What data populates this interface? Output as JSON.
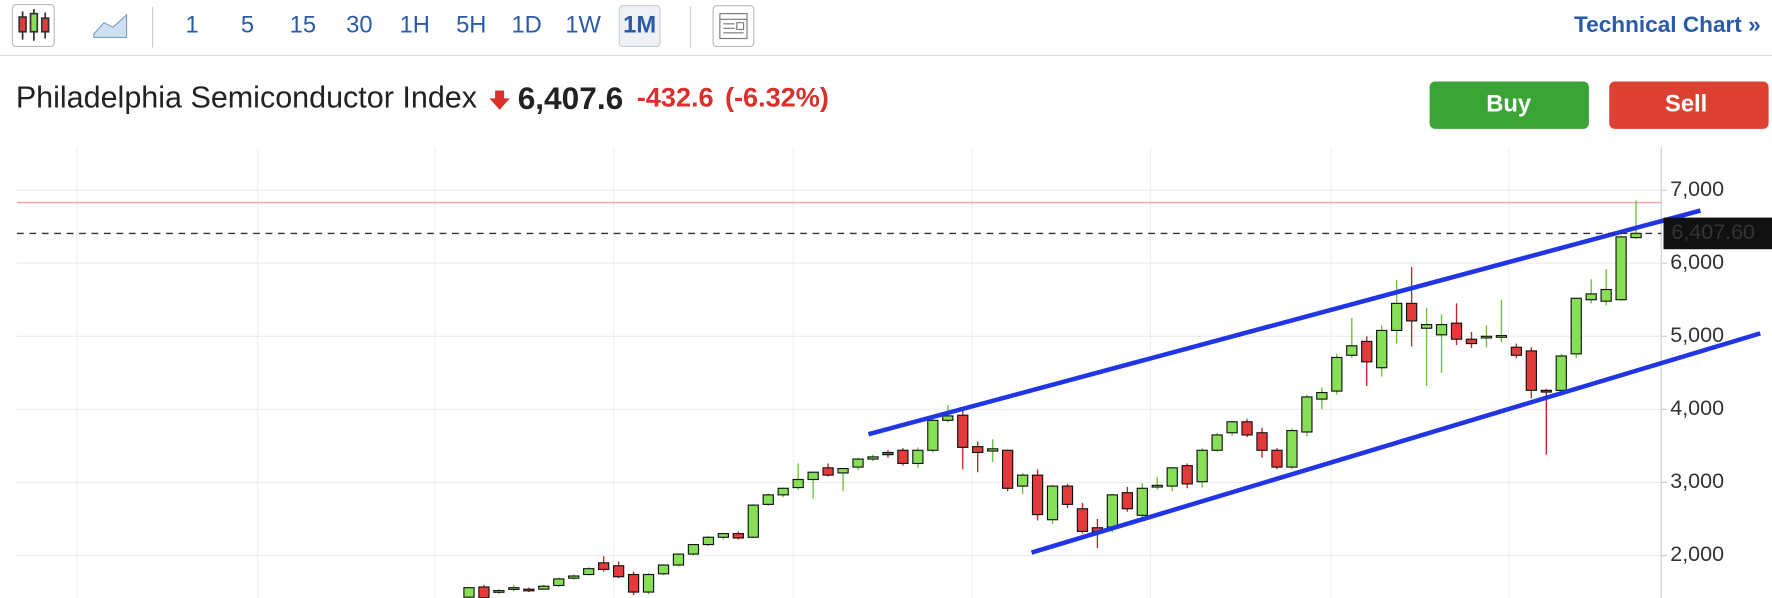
{
  "toolbar": {
    "intervals": [
      "1",
      "5",
      "15",
      "30",
      "1H",
      "5H",
      "1D",
      "1W",
      "1M"
    ],
    "active": "1M",
    "link": "Technical Chart »"
  },
  "quote": {
    "name": "Philadelphia Semiconductor Index",
    "price": "6,407.6",
    "change": "-432.6",
    "change_pct": "(-6.32%)"
  },
  "actions": {
    "buy": "Buy",
    "sell": "Sell"
  },
  "chart_data": {
    "type": "candlestick",
    "categories": [
      null,
      null,
      null,
      null,
      null,
      null,
      null,
      null,
      null,
      null,
      null,
      null,
      null,
      null,
      null,
      null,
      null,
      null,
      null,
      null,
      null,
      null,
      null,
      null,
      null,
      null,
      null,
      null,
      null,
      null,
      null,
      null,
      null,
      null,
      null,
      null,
      null,
      null,
      null,
      null,
      null,
      null,
      null,
      null,
      null,
      null,
      null,
      null,
      null,
      null,
      null,
      null,
      null,
      null,
      null,
      null,
      null,
      null,
      null,
      null,
      null,
      null,
      null,
      null,
      null,
      null,
      null,
      null,
      null,
      null,
      null,
      null,
      null,
      null,
      null,
      null,
      null,
      null,
      null
    ],
    "open": [
      1430,
      1570,
      1500,
      1540,
      1540,
      1540,
      1590,
      1690,
      1740,
      1900,
      1860,
      1740,
      1500,
      1750,
      1870,
      2020,
      2150,
      2250,
      2300,
      2250,
      2700,
      2830,
      2930,
      3040,
      3200,
      3130,
      3210,
      3320,
      3410,
      3440,
      3260,
      3440,
      3850,
      3920,
      3490,
      3430,
      3440,
      2950,
      3100,
      2490,
      2950,
      2640,
      2380,
      2390,
      2860,
      2550,
      2950,
      2950,
      3230,
      3010,
      3440,
      3680,
      3830,
      3680,
      3440,
      3210,
      3690,
      4140,
      4250,
      4740,
      4930,
      4570,
      5080,
      5450,
      5110,
      5020,
      5180,
      4960,
      4980,
      4990,
      4850,
      4800,
      4260,
      4260,
      4760,
      5500,
      5480,
      5500,
      6350
    ],
    "high": [
      1560,
      1600,
      1540,
      1600,
      1560,
      1600,
      1700,
      1740,
      1840,
      1990,
      1920,
      1780,
      1760,
      1880,
      2030,
      2160,
      2270,
      2310,
      2330,
      2700,
      2850,
      2930,
      3260,
      3150,
      3260,
      3200,
      3340,
      3380,
      3440,
      3470,
      3480,
      3880,
      4060,
      4030,
      3560,
      3590,
      3450,
      3130,
      3180,
      2970,
      2980,
      2720,
      2500,
      2840,
      2940,
      2990,
      3070,
      3210,
      3260,
      3470,
      3680,
      3840,
      3870,
      3750,
      3470,
      3740,
      4200,
      4300,
      4760,
      5250,
      5000,
      5150,
      5770,
      5950,
      5390,
      5300,
      5450,
      5060,
      5150,
      5500,
      4900,
      4850,
      4280,
      4760,
      5530,
      5780,
      5920,
      6380,
      6860
    ],
    "low": [
      1420,
      1410,
      1470,
      1510,
      1500,
      1530,
      1570,
      1670,
      1730,
      1780,
      1690,
      1460,
      1470,
      1730,
      1850,
      2000,
      2130,
      2220,
      2220,
      2240,
      2680,
      2800,
      2900,
      2780,
      3080,
      2880,
      3170,
      3290,
      3340,
      3230,
      3200,
      3410,
      3820,
      3180,
      3140,
      3280,
      2880,
      2840,
      2480,
      2430,
      2650,
      2300,
      2100,
      2320,
      2600,
      2520,
      2900,
      2880,
      2920,
      2930,
      3420,
      3640,
      3620,
      3340,
      3180,
      3180,
      3630,
      4000,
      4200,
      4700,
      4320,
      4450,
      4900,
      4860,
      4320,
      4500,
      4880,
      4840,
      4850,
      4920,
      4700,
      4150,
      3380,
      4200,
      4700,
      5450,
      5420,
      5490,
      6330
    ],
    "close": [
      1560,
      1420,
      1520,
      1560,
      1530,
      1580,
      1680,
      1720,
      1820,
      1810,
      1710,
      1500,
      1740,
      1870,
      2020,
      2150,
      2250,
      2300,
      2240,
      2690,
      2830,
      2920,
      3040,
      3140,
      3100,
      3190,
      3320,
      3350,
      3380,
      3260,
      3440,
      3850,
      3910,
      3480,
      3410,
      3460,
      2920,
      3100,
      2560,
      2950,
      2700,
      2330,
      2330,
      2830,
      2640,
      2920,
      2960,
      3200,
      2980,
      3440,
      3650,
      3830,
      3650,
      3440,
      3210,
      3710,
      4170,
      4230,
      4710,
      4870,
      4650,
      5080,
      5450,
      5210,
      5160,
      5160,
      4960,
      4900,
      5000,
      5010,
      4740,
      4260,
      4250,
      4730,
      5520,
      5580,
      5640,
      6360,
      6407.6
    ],
    "up_color": "#86df57",
    "down_color": "#e33b3b",
    "last_price": {
      "value": 6407.6,
      "label": "6,407.60"
    },
    "reference_line": 6830,
    "trend_lines": [
      {
        "x": [
          26.7,
          82.3
        ],
        "values": [
          3660,
          6720
        ]
      },
      {
        "x": [
          37.6,
          86.3
        ],
        "values": [
          2040,
          5040
        ]
      }
    ],
    "trend_color": "#1f35e6",
    "ylim": [
      1420,
      7590
    ],
    "yticks": [
      {
        "value": 2000,
        "label": "2,000"
      },
      {
        "value": 3000,
        "label": "3,000"
      },
      {
        "value": 4000,
        "label": "4,000"
      },
      {
        "value": 5000,
        "label": "5,000"
      },
      {
        "value": 6000,
        "label": "6,000"
      },
      {
        "value": 7000,
        "label": "7,000"
      }
    ],
    "grid": true
  }
}
